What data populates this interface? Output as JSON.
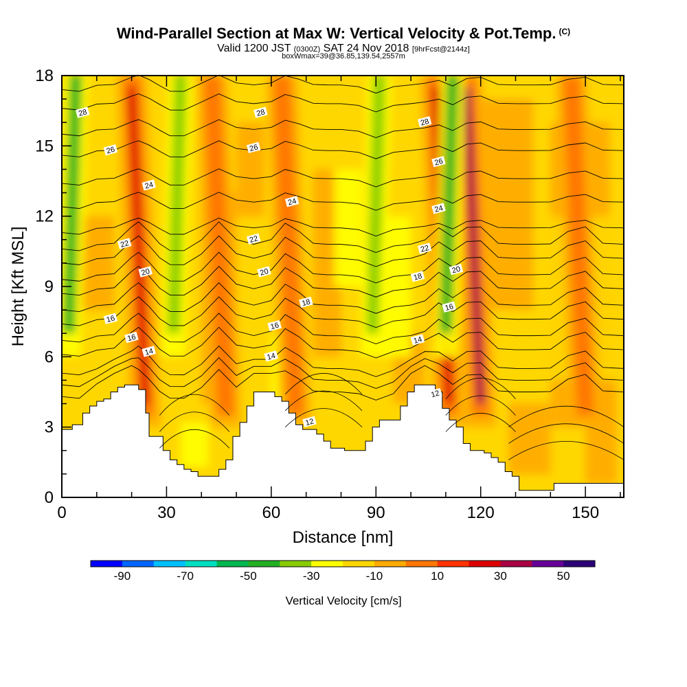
{
  "title": {
    "main": "Wind-Parallel Section at Max W: Vertical Velocity & Pot.Temp.",
    "main_unit": "(C)",
    "valid_prefix": "Valid 1200 JST",
    "valid_utc": "(0300Z)",
    "valid_date": "SAT 24 Nov 2018",
    "valid_fcst": "[9hrFcst@2144z]",
    "box": "boxWmax=39@36.85,139.54,2557m"
  },
  "chart_data": {
    "type": "heatmap",
    "xlabel": "Distance [nm]",
    "ylabel": "Height [Kft MSL]",
    "xlim": [
      0,
      161
    ],
    "ylim": [
      0,
      18
    ],
    "xticks": [
      0,
      30,
      60,
      90,
      120,
      150
    ],
    "yticks": [
      0,
      3,
      6,
      9,
      12,
      15,
      18
    ],
    "colorbar": {
      "label": "Vertical Velocity [cm/s]",
      "tick_labels": [
        "-90",
        "-70",
        "-50",
        "-30",
        "-10",
        "10",
        "30",
        "50"
      ],
      "levels": [
        -100,
        -90,
        -80,
        -70,
        -60,
        -50,
        -40,
        -30,
        -20,
        -10,
        0,
        10,
        20,
        30,
        40,
        50,
        60
      ],
      "colors": [
        "#0000ff",
        "#0066ff",
        "#00bfff",
        "#00e0c0",
        "#00b850",
        "#22b022",
        "#88cc00",
        "#ffff00",
        "#ffd700",
        "#ffaa00",
        "#ff7700",
        "#ff3300",
        "#dd0000",
        "#aa0044",
        "#660099",
        "#2c0077"
      ]
    },
    "background_color": "#ffd700",
    "updrafts": [
      {
        "x": 22,
        "wmax": 25,
        "color": "#dd0000"
      },
      {
        "x": 65,
        "wmax": 15,
        "color": "#ff7700"
      },
      {
        "x": 109,
        "wmax": 35,
        "color": "#dd0000"
      },
      {
        "x": 118,
        "wmax": 45,
        "color": "#aa0044"
      },
      {
        "x": 45,
        "wmax": 12,
        "color": "#ff7700"
      },
      {
        "x": 148,
        "wmax": 12,
        "color": "#ff7700"
      }
    ],
    "downdrafts": [
      {
        "x": 3,
        "wmin": -35,
        "color": "#22b022"
      },
      {
        "x": 33,
        "wmin": -30,
        "color": "#88cc00"
      },
      {
        "x": 90,
        "wmin": -20,
        "color": "#88cc00"
      },
      {
        "x": 111,
        "wmin": -35,
        "color": "#22b022"
      }
    ],
    "terrain": [
      [
        0,
        2.9
      ],
      [
        3,
        3.1
      ],
      [
        6,
        3.6
      ],
      [
        8,
        3.9
      ],
      [
        10,
        4.1
      ],
      [
        12,
        4.2
      ],
      [
        14,
        4.5
      ],
      [
        16,
        4.7
      ],
      [
        18,
        4.8
      ],
      [
        20,
        4.8
      ],
      [
        22,
        4.6
      ],
      [
        24,
        3.6
      ],
      [
        25,
        2.6
      ],
      [
        27,
        2.6
      ],
      [
        29,
        2.0
      ],
      [
        31,
        1.6
      ],
      [
        33,
        1.4
      ],
      [
        35,
        1.2
      ],
      [
        37,
        1.1
      ],
      [
        39,
        0.9
      ],
      [
        43,
        0.9
      ],
      [
        45,
        1.2
      ],
      [
        47,
        1.6
      ],
      [
        49,
        2.6
      ],
      [
        51,
        3.2
      ],
      [
        53,
        3.9
      ],
      [
        55,
        4.5
      ],
      [
        59,
        4.5
      ],
      [
        61,
        4.3
      ],
      [
        63,
        4.1
      ],
      [
        65,
        3.6
      ],
      [
        67,
        3.1
      ],
      [
        69,
        2.9
      ],
      [
        71,
        2.9
      ],
      [
        73,
        2.7
      ],
      [
        75,
        2.4
      ],
      [
        77,
        2.1
      ],
      [
        79,
        2.1
      ],
      [
        81,
        2.0
      ],
      [
        85,
        2.0
      ],
      [
        87,
        2.4
      ],
      [
        89,
        3.0
      ],
      [
        91,
        3.3
      ],
      [
        95,
        3.3
      ],
      [
        97,
        3.9
      ],
      [
        99,
        4.5
      ],
      [
        101,
        4.8
      ],
      [
        105,
        4.8
      ],
      [
        107,
        4.5
      ],
      [
        109,
        3.8
      ],
      [
        111,
        3.3
      ],
      [
        113,
        3.0
      ],
      [
        115,
        2.3
      ],
      [
        117,
        2.0
      ],
      [
        119,
        2.0
      ],
      [
        121,
        1.9
      ],
      [
        123,
        1.7
      ],
      [
        125,
        1.5
      ],
      [
        127,
        1.1
      ],
      [
        129,
        0.9
      ],
      [
        131,
        0.3
      ],
      [
        139,
        0.3
      ],
      [
        141,
        0.6
      ],
      [
        161,
        0.6
      ]
    ],
    "theta_isentropes": {
      "levels": [
        12,
        13,
        14,
        15,
        16,
        17,
        18,
        19,
        20,
        21,
        22,
        23,
        24,
        25,
        26,
        27,
        28,
        29
      ],
      "base_height_kft": [
        4.5,
        5.0,
        5.5,
        6.3,
        6.9,
        7.6,
        8.2,
        8.9,
        9.5,
        10.2,
        10.8,
        11.5,
        12.6,
        13.6,
        14.8,
        15.7,
        16.8,
        17.6
      ]
    },
    "isentrope_labels": [
      {
        "text": "28",
        "x": 6,
        "y": 16.4
      },
      {
        "text": "28",
        "x": 57,
        "y": 16.4
      },
      {
        "text": "28",
        "x": 104,
        "y": 16.0
      },
      {
        "text": "26",
        "x": 14,
        "y": 14.8
      },
      {
        "text": "26",
        "x": 55,
        "y": 14.9
      },
      {
        "text": "26",
        "x": 108,
        "y": 14.3
      },
      {
        "text": "24",
        "x": 25,
        "y": 13.3
      },
      {
        "text": "24",
        "x": 66,
        "y": 12.6
      },
      {
        "text": "24",
        "x": 108,
        "y": 12.3
      },
      {
        "text": "22",
        "x": 18,
        "y": 10.8
      },
      {
        "text": "22",
        "x": 55,
        "y": 11.0
      },
      {
        "text": "22",
        "x": 104,
        "y": 10.6
      },
      {
        "text": "20",
        "x": 24,
        "y": 9.6
      },
      {
        "text": "20",
        "x": 58,
        "y": 9.6
      },
      {
        "text": "20",
        "x": 113,
        "y": 9.7
      },
      {
        "text": "18",
        "x": 70,
        "y": 8.3
      },
      {
        "text": "18",
        "x": 102,
        "y": 9.4
      },
      {
        "text": "16",
        "x": 14,
        "y": 7.6
      },
      {
        "text": "16",
        "x": 61,
        "y": 7.3
      },
      {
        "text": "16",
        "x": 111,
        "y": 8.1
      },
      {
        "text": "16",
        "x": 20,
        "y": 6.8
      },
      {
        "text": "14",
        "x": 25,
        "y": 6.2
      },
      {
        "text": "14",
        "x": 60,
        "y": 6.0
      },
      {
        "text": "14",
        "x": 102,
        "y": 6.7
      },
      {
        "text": "12",
        "x": 107,
        "y": 4.4
      },
      {
        "text": "12",
        "x": 71,
        "y": 3.2
      }
    ]
  }
}
